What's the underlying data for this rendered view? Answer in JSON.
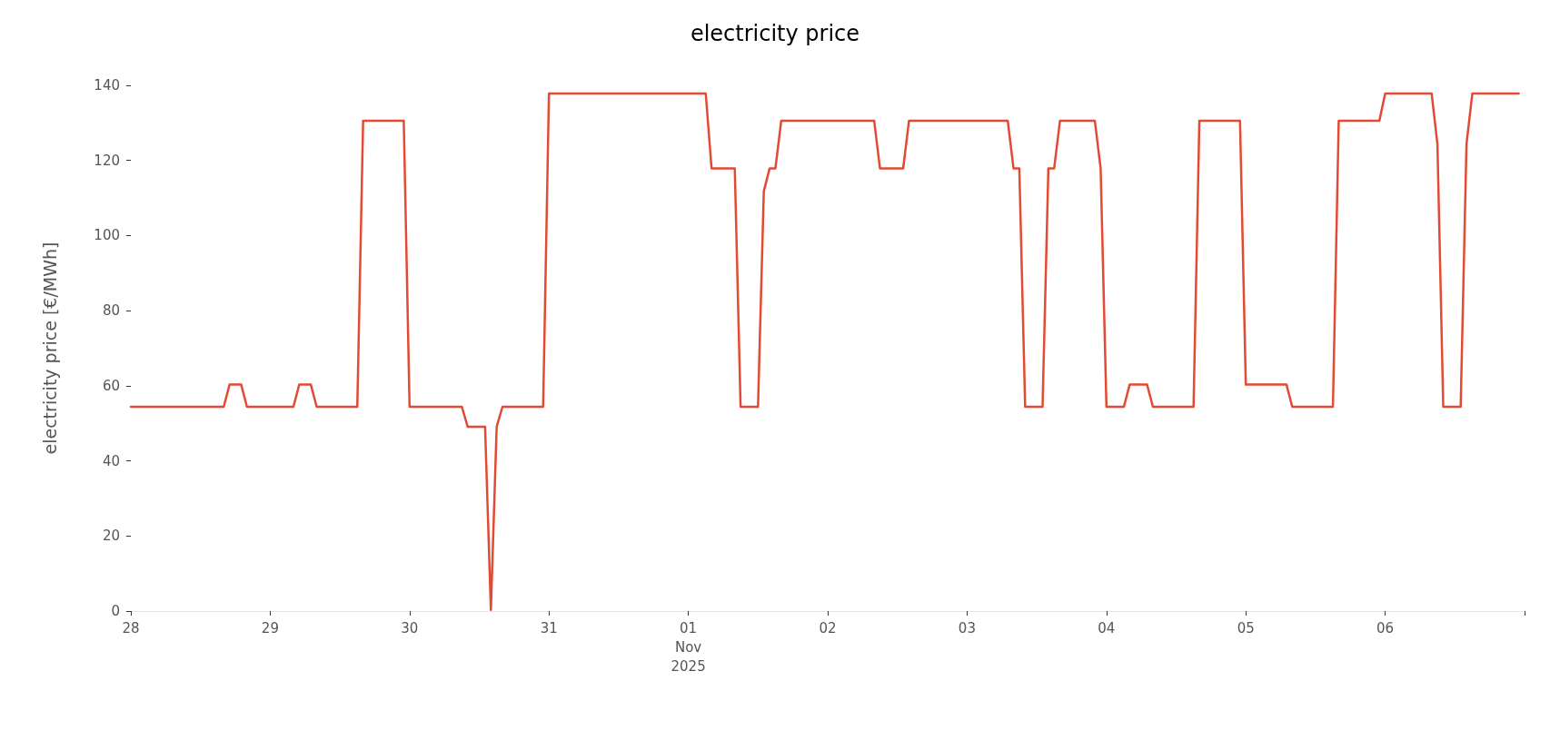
{
  "chart_data": {
    "type": "line",
    "title": "electricity price",
    "ylabel": "electricity price [€/MWh]",
    "x": [
      "2025-10-28T00:00",
      "2025-10-28T16:00",
      "2025-10-28T17:00",
      "2025-10-28T19:00",
      "2025-10-28T20:00",
      "2025-10-29T04:00",
      "2025-10-29T05:00",
      "2025-10-29T07:00",
      "2025-10-29T08:00",
      "2025-10-29T15:00",
      "2025-10-29T16:00",
      "2025-10-29T23:00",
      "2025-10-30T00:00",
      "2025-10-30T09:00",
      "2025-10-30T10:00",
      "2025-10-30T13:00",
      "2025-10-30T14:00",
      "2025-10-30T15:00",
      "2025-10-30T16:00",
      "2025-10-30T23:00",
      "2025-10-31T00:00",
      "2025-11-01T03:00",
      "2025-11-01T04:00",
      "2025-11-01T08:00",
      "2025-11-01T09:00",
      "2025-11-01T12:00",
      "2025-11-01T13:00",
      "2025-11-01T14:00",
      "2025-11-01T15:00",
      "2025-11-01T16:00",
      "2025-11-02T08:00",
      "2025-11-02T09:00",
      "2025-11-02T13:00",
      "2025-11-02T14:00",
      "2025-11-03T07:00",
      "2025-11-03T08:00",
      "2025-11-03T09:00",
      "2025-11-03T10:00",
      "2025-11-03T13:00",
      "2025-11-03T14:00",
      "2025-11-03T15:00",
      "2025-11-03T16:00",
      "2025-11-03T22:00",
      "2025-11-03T23:00",
      "2025-11-04T00:00",
      "2025-11-04T03:00",
      "2025-11-04T04:00",
      "2025-11-04T07:00",
      "2025-11-04T08:00",
      "2025-11-04T15:00",
      "2025-11-04T16:00",
      "2025-11-04T23:00",
      "2025-11-05T00:00",
      "2025-11-05T07:00",
      "2025-11-05T08:00",
      "2025-11-05T15:00",
      "2025-11-05T16:00",
      "2025-11-05T23:00",
      "2025-11-06T00:00",
      "2025-11-06T08:00",
      "2025-11-06T09:00",
      "2025-11-06T10:00",
      "2025-11-06T13:00",
      "2025-11-06T14:00",
      "2025-11-06T15:00",
      "2025-11-06T23:00"
    ],
    "series": [
      {
        "color": "#e24a33",
        "values": [
          54.4,
          54.4,
          60.3,
          60.3,
          54.4,
          54.4,
          60.3,
          60.3,
          54.4,
          54.4,
          130.6,
          130.6,
          54.4,
          54.4,
          49.1,
          49.1,
          0.3,
          49.1,
          54.4,
          54.4,
          137.8,
          137.8,
          117.9,
          117.9,
          54.4,
          54.4,
          111.8,
          117.9,
          117.9,
          130.6,
          130.6,
          117.9,
          117.9,
          130.6,
          130.6,
          117.9,
          117.9,
          54.4,
          54.4,
          117.9,
          117.9,
          130.6,
          130.6,
          117.9,
          54.4,
          54.4,
          60.3,
          60.3,
          54.4,
          54.4,
          130.6,
          130.6,
          60.3,
          60.3,
          54.4,
          54.4,
          130.6,
          130.6,
          137.8,
          137.8,
          124.3,
          54.4,
          54.4,
          124.3,
          137.8,
          137.8
        ]
      }
    ],
    "xlim": [
      "2025-10-28",
      "2025-11-07"
    ],
    "xticks": [
      {
        "value": "2025-10-28",
        "label": "28"
      },
      {
        "value": "2025-10-29",
        "label": "29"
      },
      {
        "value": "2025-10-30",
        "label": "30"
      },
      {
        "value": "2025-10-31",
        "label": "31"
      },
      {
        "value": "2025-11-01",
        "label": "01\nNov\n2025"
      },
      {
        "value": "2025-11-02",
        "label": "02"
      },
      {
        "value": "2025-11-03",
        "label": "03"
      },
      {
        "value": "2025-11-04",
        "label": "04"
      },
      {
        "value": "2025-11-05",
        "label": "05"
      },
      {
        "value": "2025-11-06",
        "label": "06"
      },
      {
        "value": "2025-11-07",
        "label": null
      }
    ],
    "ylim": [
      0,
      140
    ],
    "yticks": [
      0,
      20,
      40,
      60,
      80,
      100,
      120,
      140
    ],
    "grid": false,
    "marker": "none",
    "line_style": "solid"
  }
}
